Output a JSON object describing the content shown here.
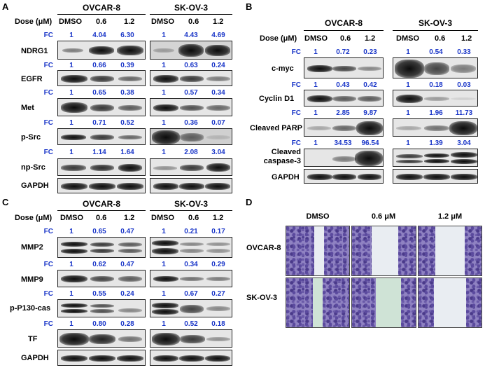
{
  "panels": {
    "A": {
      "label": "A",
      "dose_label": "Dose (μM)",
      "cells": [
        "OVCAR-8",
        "SK-OV-3"
      ],
      "doses": [
        "DMSO",
        "0.6",
        "1.2"
      ],
      "fc_label": "FC",
      "proteins": [
        {
          "name": "NDRG1",
          "fc": [
            [
              "1",
              "4.04",
              "6.30"
            ],
            [
              "1",
              "4.43",
              "4.69"
            ]
          ]
        },
        {
          "name": "EGFR",
          "fc": [
            [
              "1",
              "0.66",
              "0.39"
            ],
            [
              "1",
              "0.63",
              "0.24"
            ]
          ]
        },
        {
          "name": "Met",
          "fc": [
            [
              "1",
              "0.65",
              "0.38"
            ],
            [
              "1",
              "0.57",
              "0.34"
            ]
          ]
        },
        {
          "name": "p-Src",
          "fc": [
            [
              "1",
              "0.71",
              "0.52"
            ],
            [
              "1",
              "0.36",
              "0.07"
            ]
          ]
        },
        {
          "name": "np-Src",
          "fc": [
            [
              "1",
              "1.14",
              "1.64"
            ],
            [
              "1",
              "2.08",
              "3.04"
            ]
          ]
        },
        {
          "name": "GAPDH",
          "fc": null
        }
      ]
    },
    "B": {
      "label": "B",
      "dose_label": "Dose (μM)",
      "cells": [
        "OVCAR-8",
        "SK-OV-3"
      ],
      "doses": [
        "DMSO",
        "0.6",
        "1.2"
      ],
      "fc_label": "FC",
      "proteins": [
        {
          "name": "c-myc",
          "fc": [
            [
              "1",
              "0.72",
              "0.23"
            ],
            [
              "1",
              "0.54",
              "0.33"
            ]
          ]
        },
        {
          "name": "Cyclin D1",
          "fc": [
            [
              "1",
              "0.43",
              "0.42"
            ],
            [
              "1",
              "0.18",
              "0.03"
            ]
          ]
        },
        {
          "name": "Cleaved PARP",
          "fc": [
            [
              "1",
              "2.85",
              "9.87"
            ],
            [
              "1",
              "1.96",
              "11.73"
            ]
          ]
        },
        {
          "name": "Cleaved caspase-3",
          "fc": [
            [
              "1",
              "34.53",
              "96.54"
            ],
            [
              "1",
              "1.39",
              "3.04"
            ]
          ]
        },
        {
          "name": "GAPDH",
          "fc": null
        }
      ]
    },
    "C": {
      "label": "C",
      "dose_label": "Dose (μM)",
      "cells": [
        "OVCAR-8",
        "SK-OV-3"
      ],
      "doses": [
        "DMSO",
        "0.6",
        "1.2"
      ],
      "fc_label": "FC",
      "proteins": [
        {
          "name": "MMP2",
          "fc": [
            [
              "1",
              "0.65",
              "0.47"
            ],
            [
              "1",
              "0.21",
              "0.17"
            ]
          ]
        },
        {
          "name": "MMP9",
          "fc": [
            [
              "1",
              "0.62",
              "0.47"
            ],
            [
              "1",
              "0.34",
              "0.29"
            ]
          ]
        },
        {
          "name": "p-P130-cas",
          "fc": [
            [
              "1",
              "0.55",
              "0.24"
            ],
            [
              "1",
              "0.67",
              "0.27"
            ]
          ]
        },
        {
          "name": "TF",
          "fc": [
            [
              "1",
              "0.80",
              "0.28"
            ],
            [
              "1",
              "0.52",
              "0.18"
            ]
          ]
        },
        {
          "name": "GAPDH",
          "fc": null
        }
      ]
    },
    "D": {
      "label": "D",
      "columns": [
        "DMSO",
        "0.6 μM",
        "1.2 μM"
      ],
      "rows": [
        "OVCAR-8",
        "SK-OV-3"
      ]
    }
  }
}
